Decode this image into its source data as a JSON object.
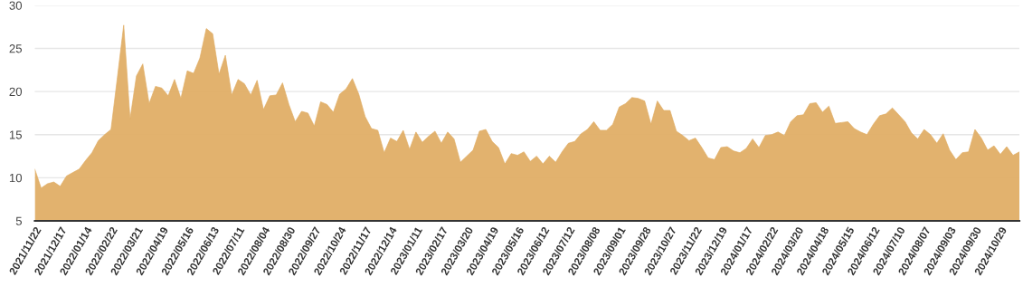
{
  "chart_data": {
    "type": "area",
    "categories": [
      "2021/11/22",
      null,
      null,
      null,
      "2021/12/17",
      null,
      null,
      null,
      "2022/01/14",
      null,
      null,
      null,
      "2022/02/22",
      null,
      null,
      null,
      "2022/03/21",
      null,
      null,
      null,
      "2022/04/19",
      null,
      null,
      null,
      "2022/05/16",
      null,
      null,
      null,
      "2022/06/13",
      null,
      null,
      null,
      "2022/07/11",
      null,
      null,
      null,
      "2022/08/04",
      null,
      null,
      null,
      "2022/08/30",
      null,
      null,
      null,
      "2022/09/27",
      null,
      null,
      null,
      "2022/10/24",
      null,
      null,
      null,
      "2022/11/17",
      null,
      null,
      null,
      "2022/12/14",
      null,
      null,
      null,
      "2023/01/11",
      null,
      null,
      null,
      "2023/02/17",
      null,
      null,
      null,
      "2023/03/20",
      null,
      null,
      null,
      "2023/04/19",
      null,
      null,
      null,
      "2023/05/16",
      null,
      null,
      null,
      "2023/06/12",
      null,
      null,
      null,
      "2023/07/12",
      null,
      null,
      null,
      "2023/08/08",
      null,
      null,
      null,
      "2023/09/01",
      null,
      null,
      null,
      "2023/09/28",
      null,
      null,
      null,
      "2023/10/27",
      null,
      null,
      null,
      "2023/11/22",
      null,
      null,
      null,
      "2023/12/19",
      null,
      null,
      null,
      "2024/01/17",
      null,
      null,
      null,
      "2024/02/22",
      null,
      null,
      null,
      "2024/03/20",
      null,
      null,
      null,
      "2024/04/18",
      null,
      null,
      null,
      "2024/05/15",
      null,
      null,
      null,
      "2024/06/12",
      null,
      null,
      null,
      "2024/07/10",
      null,
      null,
      null,
      "2024/08/07",
      null,
      null,
      null,
      "2024/09/03",
      null,
      null,
      null,
      "2024/09/30",
      null,
      null,
      null,
      "2024/10/29",
      null,
      null,
      null
    ],
    "series": [
      {
        "color": "#e0ae66",
        "values": [
          11.0,
          8.8,
          9.3,
          9.5,
          9.0,
          10.2,
          10.6,
          11.0,
          12.0,
          12.9,
          14.3,
          15.0,
          15.6,
          21.6,
          27.7,
          16.8,
          21.8,
          23.2,
          18.6,
          20.6,
          20.4,
          19.5,
          21.4,
          19.2,
          22.4,
          22.1,
          23.9,
          27.3,
          26.7,
          22.0,
          24.2,
          19.6,
          21.4,
          20.9,
          19.6,
          21.3,
          17.9,
          19.5,
          19.6,
          21.0,
          18.5,
          16.5,
          17.7,
          17.5,
          16.0,
          18.8,
          18.5,
          17.6,
          19.7,
          20.3,
          21.5,
          19.7,
          17.1,
          15.7,
          15.5,
          12.9,
          14.6,
          14.2,
          15.5,
          13.3,
          15.3,
          14.1,
          14.8,
          15.4,
          14.0,
          15.3,
          14.5,
          11.8,
          12.5,
          13.2,
          15.4,
          15.6,
          14.2,
          13.5,
          11.6,
          12.8,
          12.6,
          13.0,
          11.9,
          12.5,
          11.6,
          12.5,
          11.8,
          13.0,
          14.0,
          14.2,
          15.1,
          15.6,
          16.5,
          15.5,
          15.5,
          16.2,
          18.2,
          18.6,
          19.3,
          19.2,
          18.9,
          16.2,
          18.9,
          17.8,
          17.8,
          15.4,
          14.9,
          14.3,
          14.6,
          13.5,
          12.3,
          12.1,
          13.5,
          13.6,
          13.1,
          12.9,
          13.4,
          14.5,
          13.5,
          14.9,
          15.0,
          15.3,
          14.9,
          16.5,
          17.2,
          17.3,
          18.6,
          18.7,
          17.6,
          18.3,
          16.3,
          16.4,
          16.5,
          15.7,
          15.3,
          15.0,
          16.2,
          17.2,
          17.4,
          18.1,
          17.3,
          16.5,
          15.2,
          14.5,
          15.6,
          15.0,
          14.0,
          15.1,
          13.2,
          12.1,
          12.9,
          13.0,
          15.6,
          14.6,
          13.2,
          13.7,
          12.7,
          13.6,
          12.6,
          13.0
        ]
      }
    ],
    "ylim": [
      5,
      30
    ],
    "yticks": [
      5,
      10,
      15,
      20,
      25,
      30
    ],
    "grid": "y"
  }
}
